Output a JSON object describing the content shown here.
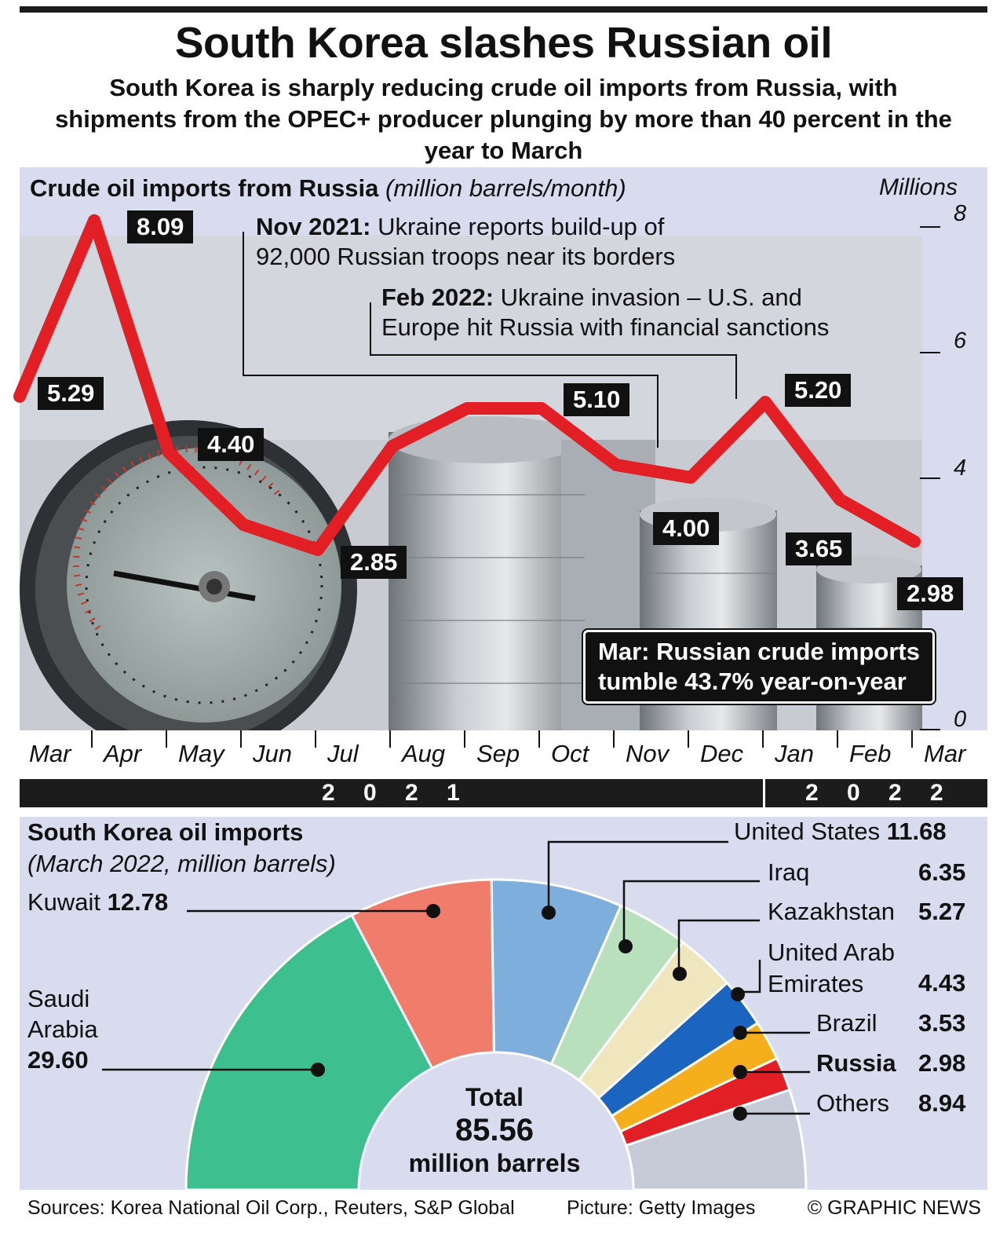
{
  "header": {
    "title": "South Korea slashes Russian oil",
    "subtitle": "South Korea is sharply reducing crude oil imports from Russia, with shipments from the OPEC+ producer plunging by more than 40 percent in the year to March"
  },
  "chart_data": [
    {
      "type": "line",
      "title": "Crude oil imports from Russia",
      "subtitle": "(million barrels/month)",
      "ylabel": "Millions",
      "ylim": [
        0,
        8
      ],
      "yticks": [
        "8",
        "6",
        "4",
        "0"
      ],
      "categories": [
        "Mar",
        "Apr",
        "May",
        "Jun",
        "Jul",
        "Aug",
        "Sep",
        "Oct",
        "Nov",
        "Dec",
        "Jan",
        "Feb",
        "Mar"
      ],
      "years": [
        {
          "label": "2 0 2 1"
        },
        {
          "label": "2 0 2 2"
        }
      ],
      "values": [
        5.29,
        8.09,
        4.4,
        3.25,
        2.85,
        4.5,
        5.1,
        5.1,
        4.2,
        4.0,
        5.2,
        3.65,
        2.98
      ],
      "data_labels": [
        {
          "index": 0,
          "text": "5.29"
        },
        {
          "index": 1,
          "text": "8.09"
        },
        {
          "index": 2,
          "text": "4.40"
        },
        {
          "index": 4,
          "text": "2.85"
        },
        {
          "index": 7,
          "text": "5.10"
        },
        {
          "index": 9,
          "text": "4.00"
        },
        {
          "index": 10,
          "text": "5.20"
        },
        {
          "index": 11,
          "text": "3.65"
        },
        {
          "index": 12,
          "text": "2.98"
        }
      ],
      "annotations": {
        "nov": {
          "date": "Nov 2021:",
          "line1": "Ukraine reports build-up of",
          "line2": "92,000 Russian troops near its borders"
        },
        "feb": {
          "date": "Feb 2022:",
          "line1": "Ukraine invasion – U.S. and",
          "line2": "Europe hit Russia with financial sanctions"
        },
        "mar": {
          "line1": "Mar: Russian crude imports",
          "line2": "tumble 43.7% year-on-year"
        }
      },
      "colors": {
        "line": "#e31f26",
        "panel": "#d9dcee"
      }
    },
    {
      "type": "pie",
      "title": "South Korea oil imports",
      "subtitle": "(March 2022, million barrels)",
      "total": {
        "label": "Total",
        "value": "85.56",
        "unit": "million barrels"
      },
      "slices": [
        {
          "name": "Saudi Arabia",
          "name1": "Saudi",
          "name2": "Arabia",
          "value": 29.6,
          "text": "29.60",
          "color": "#3dbf8f"
        },
        {
          "name": "Kuwait",
          "value": 12.78,
          "text": "12.78",
          "color": "#f07c6c"
        },
        {
          "name": "United States",
          "value": 11.68,
          "text": "11.68",
          "color": "#7eaedc"
        },
        {
          "name": "Iraq",
          "value": 6.35,
          "text": "6.35",
          "color": "#b9e0bd"
        },
        {
          "name": "Kazakhstan",
          "value": 5.27,
          "text": "5.27",
          "color": "#efe6bd"
        },
        {
          "name": "United Arab Emirates",
          "name1": "United Arab",
          "name2": "Emirates",
          "value": 4.43,
          "text": "4.43",
          "color": "#1b65c0"
        },
        {
          "name": "Brazil",
          "value": 3.53,
          "text": "3.53",
          "color": "#f5ae1c"
        },
        {
          "name": "Russia",
          "value": 2.98,
          "text": "2.98",
          "color": "#e31f26"
        },
        {
          "name": "Others",
          "value": 8.94,
          "text": "8.94",
          "color": "#c7cbd8"
        }
      ]
    }
  ],
  "footer": {
    "sources": "Sources: Korea National Oil Corp., Reuters, S&P Global",
    "picture": "Picture: Getty Images",
    "credit": "© GRAPHIC NEWS"
  }
}
